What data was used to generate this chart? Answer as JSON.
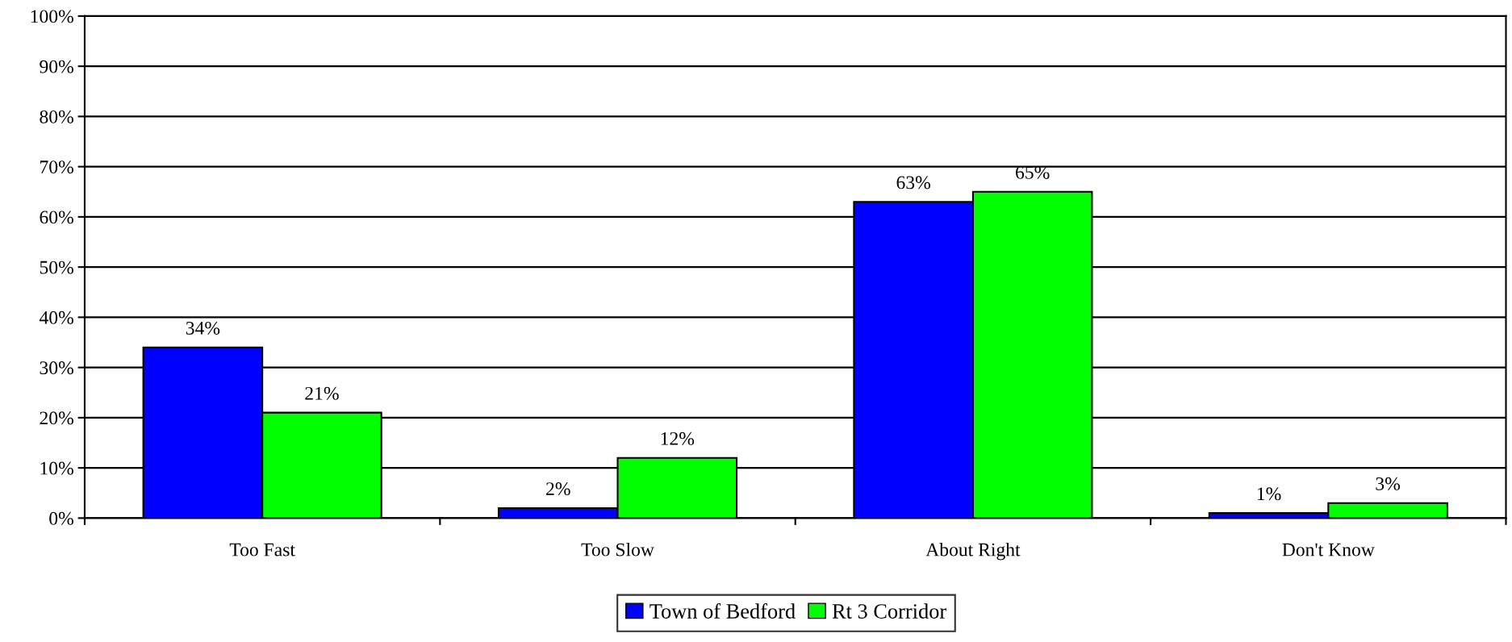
{
  "chart_data": {
    "type": "bar",
    "categories": [
      "Too Fast",
      "Too Slow",
      "About Right",
      "Don't Know"
    ],
    "series": [
      {
        "name": "Town of Bedford",
        "color": "#0000ff",
        "values": [
          34,
          2,
          63,
          1
        ],
        "value_labels": [
          "34%",
          "2%",
          "63%",
          "1%"
        ]
      },
      {
        "name": "Rt 3 Corridor",
        "color": "#00ff00",
        "values": [
          21,
          12,
          65,
          3
        ],
        "value_labels": [
          "21%",
          "12%",
          "65%",
          "3%"
        ]
      }
    ],
    "ylim": [
      0,
      100
    ],
    "yticks": [
      {
        "value": 0,
        "label": "0%"
      },
      {
        "value": 10,
        "label": "10%"
      },
      {
        "value": 20,
        "label": "20%"
      },
      {
        "value": 30,
        "label": "30%"
      },
      {
        "value": 40,
        "label": "40%"
      },
      {
        "value": 50,
        "label": "50%"
      },
      {
        "value": 60,
        "label": "60%"
      },
      {
        "value": 70,
        "label": "70%"
      },
      {
        "value": 80,
        "label": "80%"
      },
      {
        "value": 90,
        "label": "90%"
      },
      {
        "value": 100,
        "label": "100%"
      }
    ],
    "grid": "y",
    "legend": "bottom"
  }
}
